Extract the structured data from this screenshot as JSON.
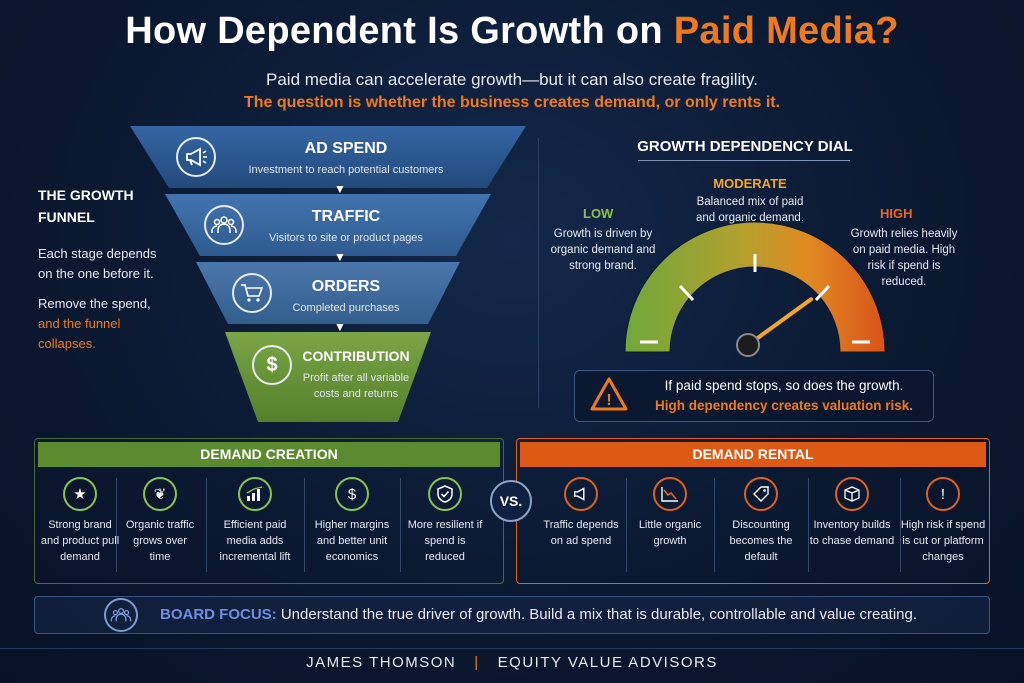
{
  "header": {
    "title_main": "How Dependent Is Growth on ",
    "title_accent": "Paid Media?",
    "subtitle": "Paid media can accelerate growth—but it can also create fragility.",
    "question": "The question is whether the business creates demand, or only rents it."
  },
  "growth_funnel": {
    "heading": "THE GROWTH FUNNEL",
    "text1": "Each stage depends on the one before it.",
    "text2": "Remove the spend,",
    "text2_accent": "and the funnel collapses.",
    "stages": [
      {
        "label": "AD SPEND",
        "desc": "Investment to reach potential customers",
        "icon": "megaphone-icon"
      },
      {
        "label": "TRAFFIC",
        "desc": "Visitors to site or product pages",
        "icon": "people-icon"
      },
      {
        "label": "ORDERS",
        "desc": "Completed purchases",
        "icon": "cart-icon"
      },
      {
        "label": "CONTRIBUTION",
        "desc": "Profit after all variable costs and returns",
        "icon": "dollar-icon"
      }
    ],
    "colors": {
      "ad_spend": "#2f5a93",
      "traffic": "#3d6aa3",
      "orders": "#46709f",
      "contribution": "#6e9a3a"
    }
  },
  "dial": {
    "title": "GROWTH DEPENDENCY DIAL",
    "low": {
      "label": "LOW",
      "text": "Growth is driven by organic demand and strong brand."
    },
    "moderate": {
      "label": "MODERATE",
      "text": "Balanced mix of paid and organic demand."
    },
    "high": {
      "label": "HIGH",
      "text": "Growth relies heavily on paid media. High risk if spend is reduced."
    },
    "warning_line1": "If paid spend stops, so does the growth.",
    "warning_line2": "High dependency creates valuation risk.",
    "needle_level": 0.8,
    "colors": {
      "low": "#6fa83a",
      "moderate": "#d8a42a",
      "high": "#e0621a"
    }
  },
  "demand_creation": {
    "title": "DEMAND CREATION",
    "items": [
      {
        "icon": "stars-icon",
        "text": "Strong brand and product pull demand"
      },
      {
        "icon": "leaf-icon",
        "text": "Organic traffic grows over time"
      },
      {
        "icon": "bar-chart-icon",
        "text": "Efficient paid media adds incremental lift"
      },
      {
        "icon": "dollar-icon",
        "text": "Higher margins and better unit economics"
      },
      {
        "icon": "shield-icon",
        "text": "More resilient if spend is reduced"
      }
    ]
  },
  "vs_label": "VS.",
  "demand_rental": {
    "title": "DEMAND RENTAL",
    "items": [
      {
        "icon": "megaphone-icon",
        "text": "Traffic depends on ad spend"
      },
      {
        "icon": "declining-chart-icon",
        "text": "Little organic growth"
      },
      {
        "icon": "price-tag-icon",
        "text": "Discounting becomes the default"
      },
      {
        "icon": "boxes-icon",
        "text": "Inventory builds to chase demand"
      },
      {
        "icon": "warning-icon",
        "text": "High risk if spend is cut or platform changes"
      }
    ]
  },
  "board": {
    "label": "BOARD FOCUS:",
    "text": "Understand the true driver of growth. Build a mix that is durable, controllable and value creating."
  },
  "footer": {
    "name": "JAMES THOMSON",
    "company": "EQUITY VALUE ADVISORS"
  }
}
